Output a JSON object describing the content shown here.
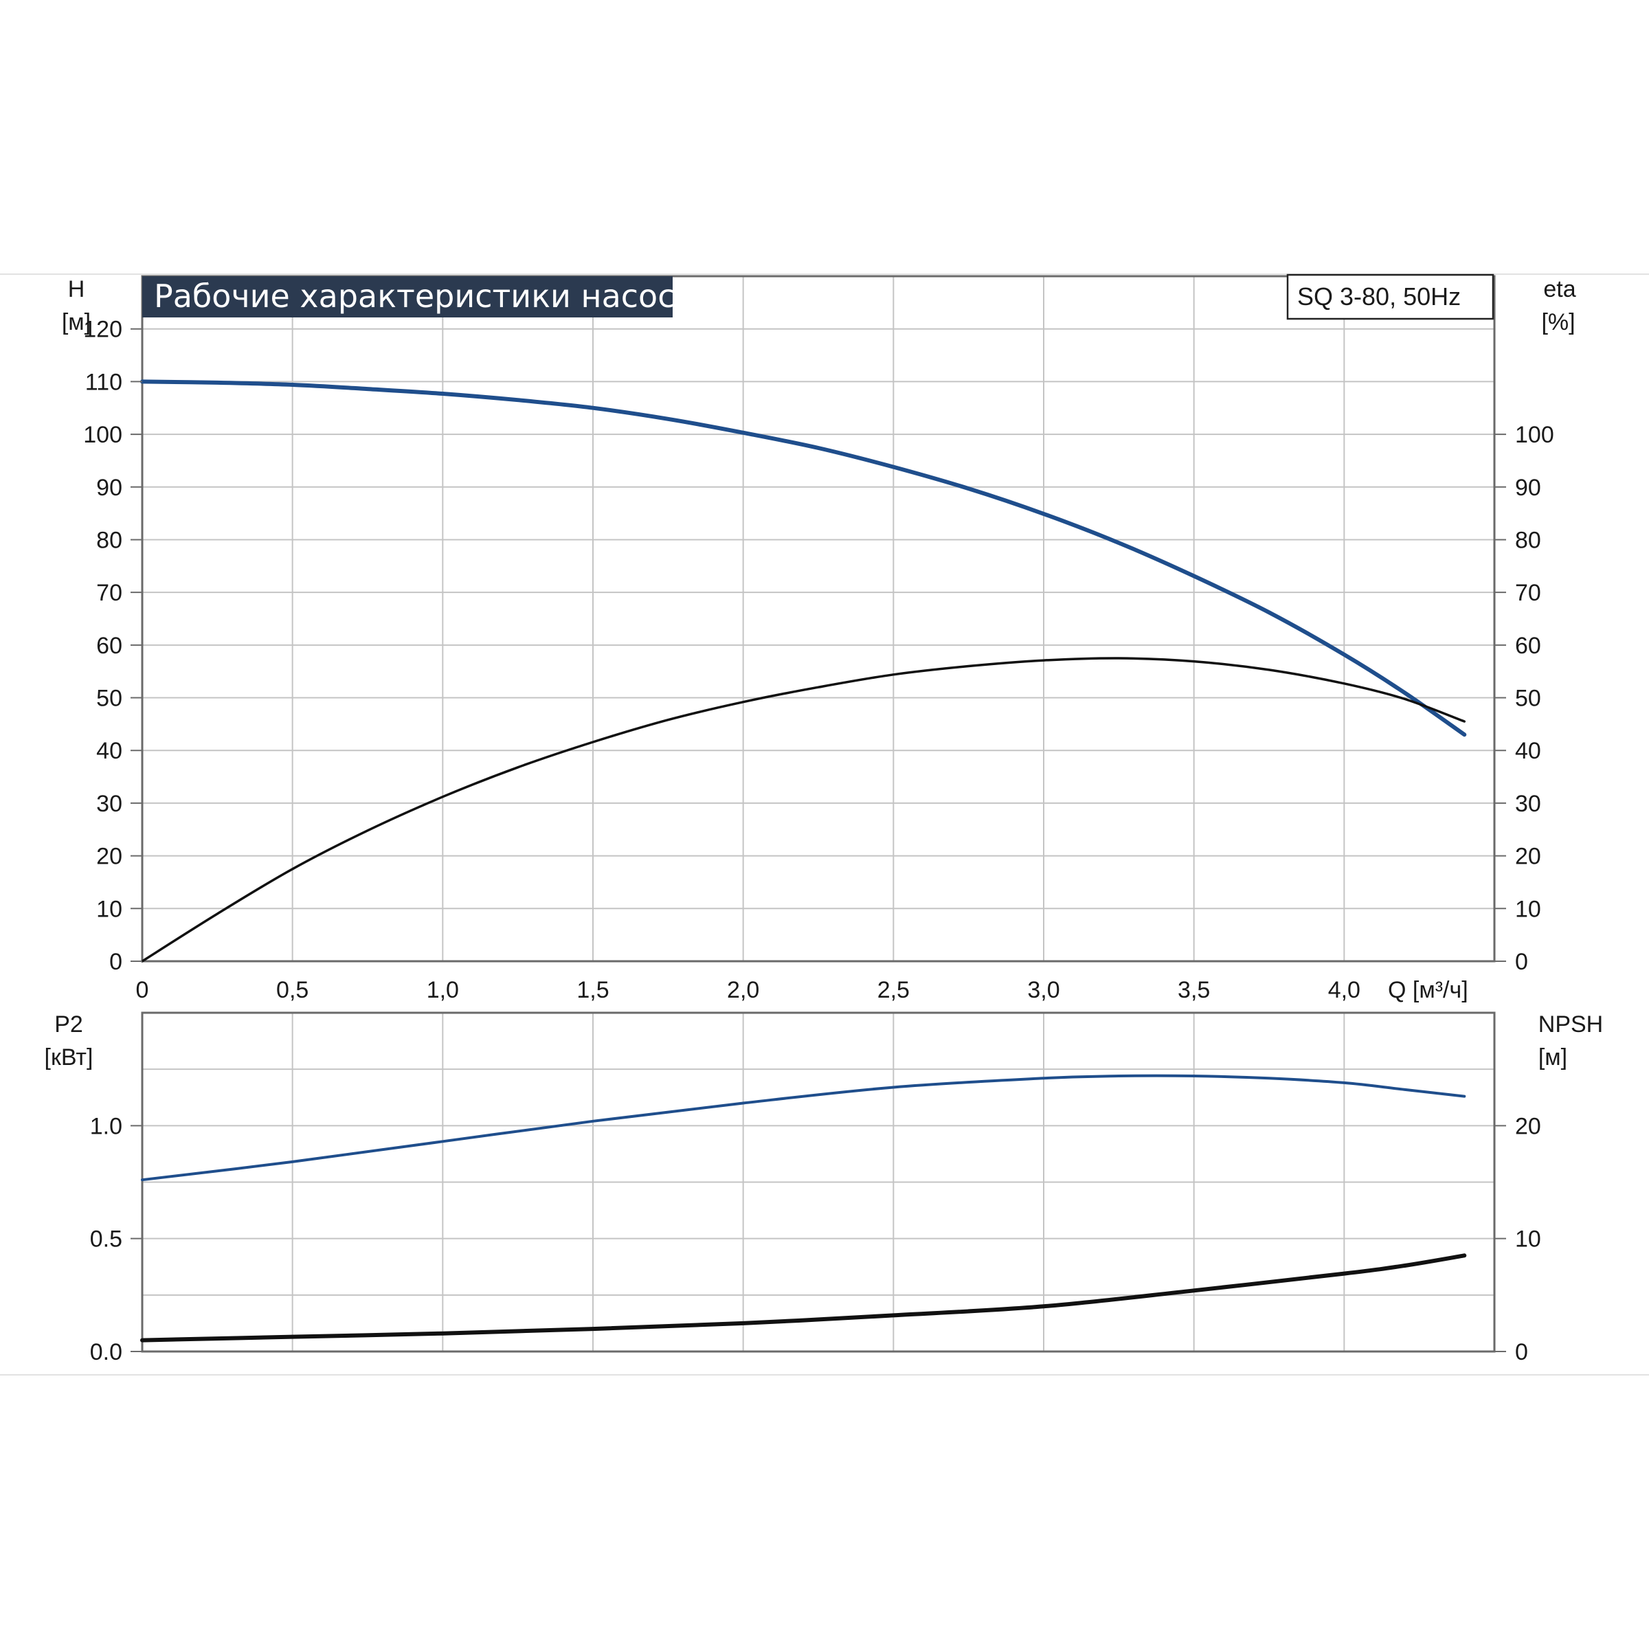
{
  "chart_data": [
    {
      "type": "line",
      "title": "Рабочие характеристики насоса",
      "model": "SQ 3-80, 50Hz",
      "x_axis": {
        "label": "Q [м³/ч]",
        "range": [
          0,
          4.5
        ],
        "ticks": [
          0,
          0.5,
          1.0,
          1.5,
          2.0,
          2.5,
          3.0,
          3.5,
          4.0
        ],
        "tick_labels": [
          "0",
          "0,5",
          "1,0",
          "1,5",
          "2,0",
          "2,5",
          "3,0",
          "3,5",
          "4,0"
        ]
      },
      "y_axis_left": {
        "label_line1": "H",
        "label_line2": "[м]",
        "range": [
          0,
          130
        ],
        "ticks": [
          0,
          10,
          20,
          30,
          40,
          50,
          60,
          70,
          80,
          90,
          100,
          110,
          120
        ],
        "tick_labels": [
          "0",
          "10",
          "20",
          "30",
          "40",
          "50",
          "60",
          "70",
          "80",
          "90",
          "100",
          "110",
          "120"
        ]
      },
      "y_axis_right": {
        "label_line1": "eta",
        "label_line2": "[%]",
        "range": [
          0,
          130
        ],
        "ticks": [
          0,
          10,
          20,
          30,
          40,
          50,
          60,
          70,
          80,
          90,
          100
        ],
        "tick_labels": [
          "0",
          "10",
          "20",
          "30",
          "40",
          "50",
          "60",
          "70",
          "80",
          "90",
          "100"
        ]
      },
      "grid": true,
      "series": [
        {
          "axis": "left",
          "color": "#1f4e8c",
          "x": [
            0,
            0.25,
            0.5,
            0.75,
            1.0,
            1.25,
            1.5,
            1.75,
            2.0,
            2.25,
            2.5,
            2.75,
            3.0,
            3.25,
            3.5,
            3.75,
            4.0,
            4.2,
            4.4
          ],
          "y": [
            110,
            109.8,
            109.4,
            108.6,
            107.7,
            106.5,
            105.0,
            102.9,
            100.3,
            97.4,
            93.8,
            89.7,
            84.9,
            79.4,
            73.1,
            66.2,
            58.2,
            51.0,
            43.0
          ]
        },
        {
          "axis": "right",
          "color": "#111111",
          "x": [
            0,
            0.25,
            0.5,
            0.75,
            1.0,
            1.25,
            1.5,
            1.75,
            2.0,
            2.25,
            2.5,
            2.75,
            3.0,
            3.25,
            3.5,
            3.75,
            4.0,
            4.2,
            4.4
          ],
          "y": [
            0,
            9.0,
            17.5,
            24.8,
            31.2,
            36.8,
            41.6,
            45.8,
            49.2,
            52.0,
            54.4,
            56.0,
            57.1,
            57.5,
            56.9,
            55.3,
            52.7,
            49.8,
            45.5
          ]
        }
      ]
    },
    {
      "type": "line",
      "x_axis": {
        "range": [
          0,
          4.5
        ],
        "ticks": [
          0,
          0.5,
          1.0,
          1.5,
          2.0,
          2.5,
          3.0,
          3.5,
          4.0
        ]
      },
      "y_axis_left": {
        "label_line1": "P2",
        "label_line2": "[кВт]",
        "range": [
          0,
          1.5
        ],
        "ticks": [
          0.0,
          0.5,
          1.0
        ],
        "tick_labels": [
          "0.0",
          "0.5",
          "1.0"
        ]
      },
      "y_axis_right": {
        "label_line1": "NPSH",
        "label_line2": "[м]",
        "range": [
          0,
          30
        ],
        "ticks": [
          0,
          10,
          20
        ],
        "tick_labels": [
          "0",
          "10",
          "20"
        ]
      },
      "grid": true,
      "series": [
        {
          "axis": "left",
          "color": "#1f4e8c",
          "x": [
            0,
            0.5,
            1.0,
            1.5,
            2.0,
            2.5,
            3.0,
            3.25,
            3.5,
            3.75,
            4.0,
            4.2,
            4.4
          ],
          "y": [
            0.76,
            0.84,
            0.93,
            1.02,
            1.1,
            1.17,
            1.21,
            1.22,
            1.22,
            1.21,
            1.19,
            1.16,
            1.13
          ]
        },
        {
          "axis": "right",
          "color": "#111111",
          "x": [
            0,
            0.5,
            1.0,
            1.5,
            2.0,
            2.5,
            3.0,
            3.5,
            4.0,
            4.2,
            4.4
          ],
          "y": [
            1.0,
            1.3,
            1.6,
            2.0,
            2.5,
            3.2,
            4.0,
            5.4,
            6.9,
            7.6,
            8.5
          ]
        }
      ]
    }
  ]
}
